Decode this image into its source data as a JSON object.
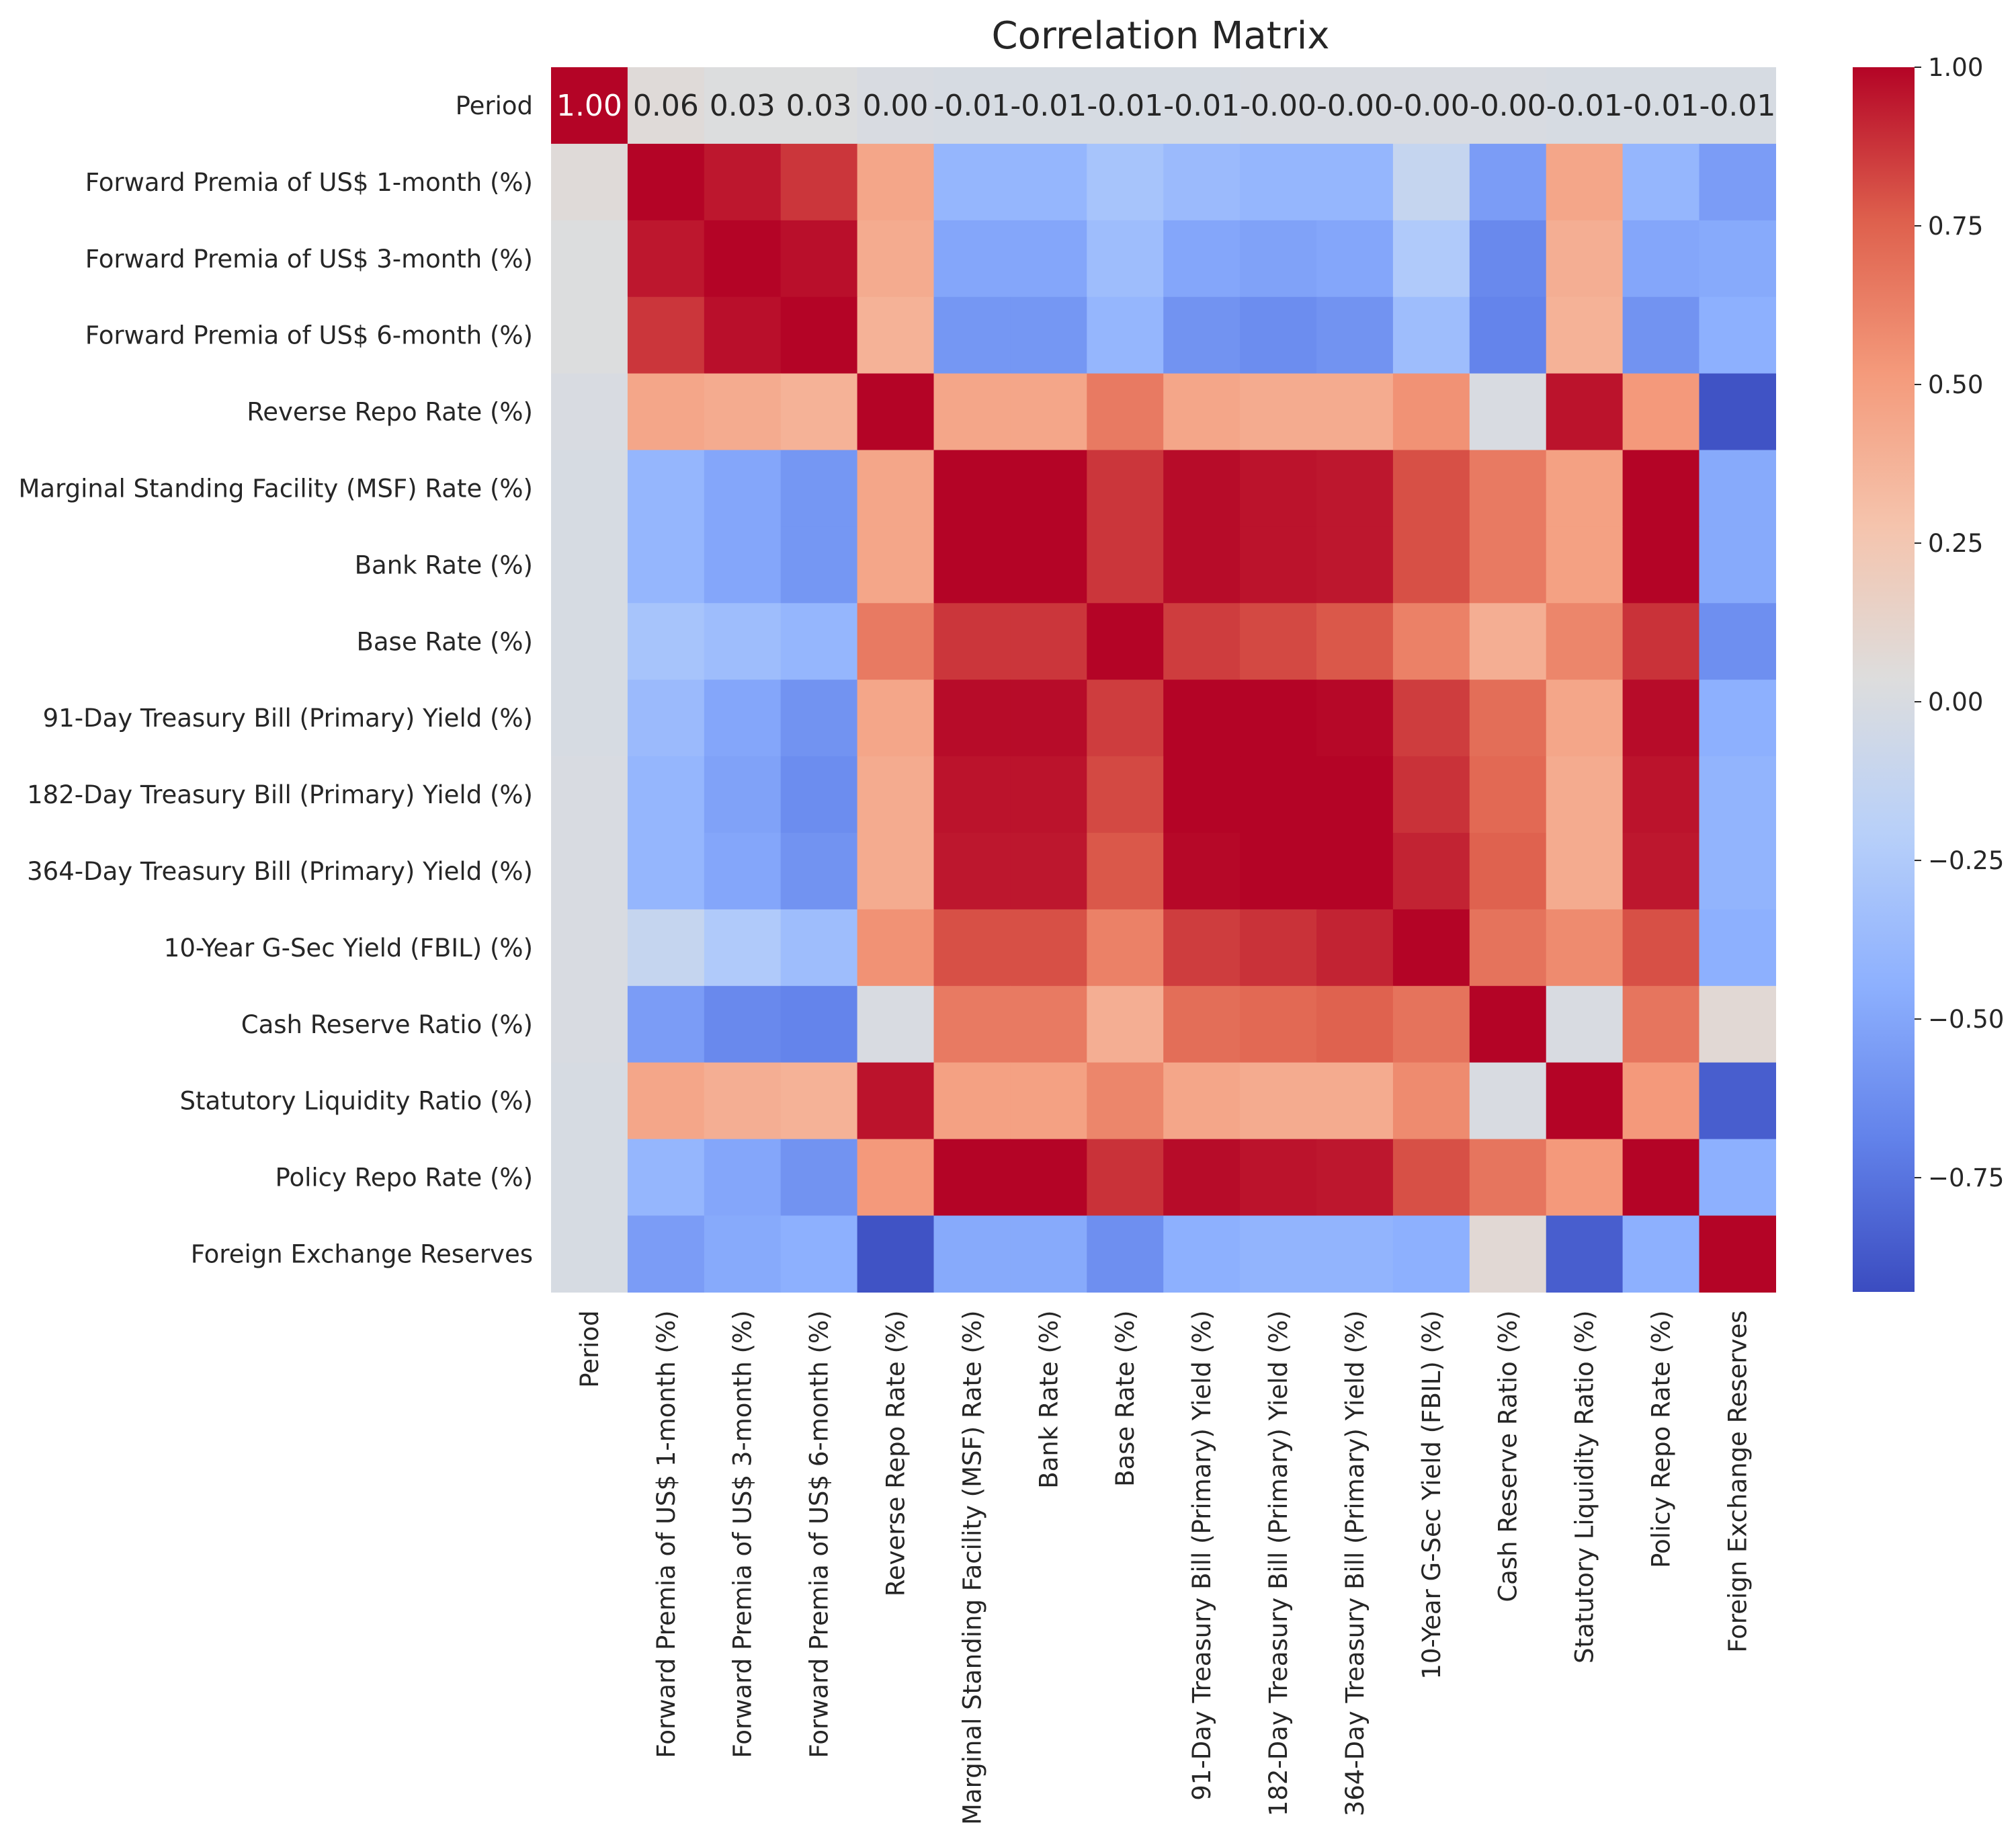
{
  "chart_data": {
    "type": "heatmap",
    "title": "Correlation Matrix",
    "xlabel": "",
    "ylabel": "",
    "colormap": "coolwarm",
    "labels": [
      "Period",
      "Forward Premia of US$ 1-month (%)",
      "Forward Premia of US$ 3-month (%)",
      "Forward Premia of US$ 6-month (%)",
      "Reverse Repo Rate (%)",
      "Marginal Standing Facility (MSF) Rate (%)",
      "Bank Rate (%)",
      "Base Rate (%)",
      "91-Day Treasury Bill (Primary) Yield (%)",
      "182-Day Treasury Bill (Primary) Yield (%)",
      "364-Day Treasury Bill (Primary) Yield (%)",
      "10-Year G-Sec Yield (FBIL) (%)",
      "Cash Reserve Ratio (%)",
      "Statutory Liquidity Ratio (%)",
      "Policy Repo Rate (%)",
      "Foreign Exchange Reserves"
    ],
    "annotations": [
      "1.00",
      "0.06",
      "0.03",
      "0.03",
      "0.00",
      "-0.01",
      "-0.01",
      "-0.01",
      "-0.01",
      "-0.00",
      "-0.00",
      "-0.00",
      "-0.00",
      "-0.01",
      "-0.01",
      "-0.01"
    ],
    "values": [
      [
        1.0,
        0.06,
        0.03,
        0.03,
        0.0,
        -0.01,
        -0.01,
        -0.01,
        -0.01,
        -0.0,
        -0.0,
        -0.0,
        -0.0,
        -0.01,
        -0.01,
        -0.01
      ],
      [
        0.06,
        1.0,
        0.95,
        0.87,
        0.45,
        -0.4,
        -0.4,
        -0.3,
        -0.37,
        -0.4,
        -0.4,
        -0.12,
        -0.55,
        0.45,
        -0.4,
        -0.55
      ],
      [
        0.03,
        0.95,
        1.0,
        0.97,
        0.42,
        -0.5,
        -0.5,
        -0.35,
        -0.5,
        -0.52,
        -0.5,
        -0.25,
        -0.65,
        0.4,
        -0.5,
        -0.48
      ],
      [
        0.03,
        0.87,
        0.97,
        1.0,
        0.38,
        -0.58,
        -0.58,
        -0.4,
        -0.6,
        -0.63,
        -0.6,
        -0.35,
        -0.68,
        0.38,
        -0.6,
        -0.45
      ],
      [
        0.0,
        0.45,
        0.42,
        0.38,
        1.0,
        0.45,
        0.45,
        0.65,
        0.45,
        0.42,
        0.42,
        0.55,
        0.0,
        0.96,
        0.52,
        -0.9
      ],
      [
        -0.01,
        -0.4,
        -0.5,
        -0.58,
        0.45,
        1.0,
        1.0,
        0.87,
        0.98,
        0.96,
        0.95,
        0.8,
        0.65,
        0.48,
        1.0,
        -0.48
      ],
      [
        -0.01,
        -0.4,
        -0.5,
        -0.58,
        0.45,
        1.0,
        1.0,
        0.87,
        0.98,
        0.96,
        0.95,
        0.8,
        0.65,
        0.48,
        1.0,
        -0.48
      ],
      [
        -0.01,
        -0.3,
        -0.35,
        -0.4,
        0.65,
        0.87,
        0.87,
        1.0,
        0.85,
        0.82,
        0.78,
        0.62,
        0.4,
        0.6,
        0.88,
        -0.62
      ],
      [
        -0.01,
        -0.37,
        -0.5,
        -0.6,
        0.45,
        0.98,
        0.98,
        0.85,
        1.0,
        1.0,
        0.99,
        0.85,
        0.7,
        0.45,
        0.98,
        -0.45
      ],
      [
        -0.0,
        -0.4,
        -0.52,
        -0.63,
        0.42,
        0.96,
        0.96,
        0.82,
        1.0,
        1.0,
        1.0,
        0.88,
        0.72,
        0.42,
        0.96,
        -0.42
      ],
      [
        -0.0,
        -0.4,
        -0.5,
        -0.6,
        0.42,
        0.95,
        0.95,
        0.78,
        0.99,
        1.0,
        1.0,
        0.92,
        0.75,
        0.42,
        0.95,
        -0.42
      ],
      [
        -0.0,
        -0.12,
        -0.25,
        -0.35,
        0.55,
        0.8,
        0.8,
        0.62,
        0.85,
        0.88,
        0.92,
        1.0,
        0.68,
        0.58,
        0.8,
        -0.45
      ],
      [
        -0.0,
        -0.55,
        -0.65,
        -0.68,
        0.0,
        0.65,
        0.65,
        0.4,
        0.7,
        0.72,
        0.75,
        0.68,
        1.0,
        0.0,
        0.67,
        0.08
      ],
      [
        -0.01,
        0.45,
        0.4,
        0.38,
        0.96,
        0.48,
        0.48,
        0.6,
        0.45,
        0.42,
        0.42,
        0.58,
        0.0,
        1.0,
        0.52,
        -0.85
      ],
      [
        -0.01,
        -0.4,
        -0.5,
        -0.6,
        0.52,
        1.0,
        1.0,
        0.88,
        0.98,
        0.96,
        0.95,
        0.8,
        0.67,
        0.52,
        1.0,
        -0.45
      ],
      [
        -0.01,
        -0.55,
        -0.48,
        -0.45,
        -0.9,
        -0.48,
        -0.48,
        -0.62,
        -0.45,
        -0.42,
        -0.42,
        -0.45,
        0.08,
        -0.85,
        -0.45,
        1.0
      ]
    ],
    "vmin": -0.93,
    "vmax": 1.0,
    "colorbar_ticks": [
      "1.00",
      "0.75",
      "0.50",
      "0.25",
      "0.00",
      "−0.25",
      "−0.50",
      "−0.75"
    ],
    "colorbar_tick_values": [
      1.0,
      0.75,
      0.5,
      0.25,
      0.0,
      -0.25,
      -0.5,
      -0.75
    ]
  }
}
